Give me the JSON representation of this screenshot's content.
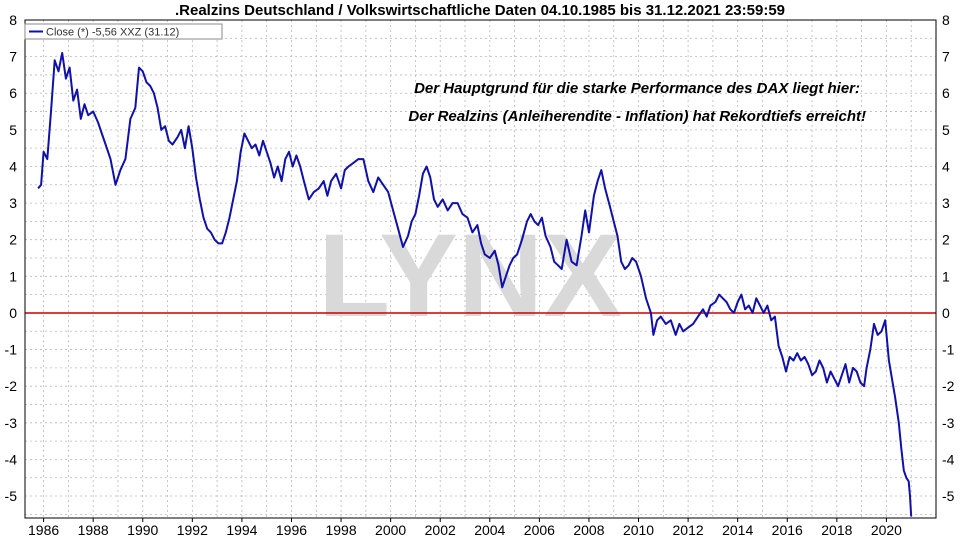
{
  "chart_data": {
    "type": "line",
    "title": ".Realzins Deutschland / Volkswirtschaftliche Daten 04.10.1985 bis 31.12.2021 23:59:59",
    "legend": {
      "entry": "Close (*) -5,56 XXZ (31.12)",
      "placement": "top-left"
    },
    "annotations": [
      "Der Hauptgrund für die starke Performance des DAX liegt hier:",
      "Der Realzins (Anleiherendite - Inflation) hat Rekordtiefs erreicht!"
    ],
    "watermark": "LYNX",
    "x_range": [
      1985.25,
      2022.0
    ],
    "ylim": [
      -5.6,
      8.0
    ],
    "x_ticks": [
      {
        "value": 1986,
        "label": "1986"
      },
      {
        "value": 1988,
        "label": "1988"
      },
      {
        "value": 1990,
        "label": "1990"
      },
      {
        "value": 1992,
        "label": "1992"
      },
      {
        "value": 1994,
        "label": "1994"
      },
      {
        "value": 1996,
        "label": "1996"
      },
      {
        "value": 1998,
        "label": "1998"
      },
      {
        "value": 2000,
        "label": "2000"
      },
      {
        "value": 2002,
        "label": "2002"
      },
      {
        "value": 2004,
        "label": "2004"
      },
      {
        "value": 2006,
        "label": "2006"
      },
      {
        "value": 2008,
        "label": "2008"
      },
      {
        "value": 2010,
        "label": "2010"
      },
      {
        "value": 2012,
        "label": "2012"
      },
      {
        "value": 2014,
        "label": "2014"
      },
      {
        "value": 2016,
        "label": "2016"
      },
      {
        "value": 2018,
        "label": "2018"
      },
      {
        "value": 2020,
        "label": "2020"
      }
    ],
    "y_ticks": [
      {
        "value": 8,
        "label": "8"
      },
      {
        "value": 7,
        "label": "7"
      },
      {
        "value": 6,
        "label": "6"
      },
      {
        "value": 5,
        "label": "5"
      },
      {
        "value": 4,
        "label": "4"
      },
      {
        "value": 3,
        "label": "3"
      },
      {
        "value": 2,
        "label": "2"
      },
      {
        "value": 1,
        "label": "1"
      },
      {
        "value": 0,
        "label": "0"
      },
      {
        "value": -1,
        "label": "-1"
      },
      {
        "value": -2,
        "label": "-2"
      },
      {
        "value": -3,
        "label": "-3"
      },
      {
        "value": -4,
        "label": "-4"
      },
      {
        "value": -5,
        "label": "-5"
      }
    ],
    "grid": true,
    "reference_line": {
      "y": 0,
      "color": "#cc0000"
    },
    "series": [
      {
        "color": "#1010aa",
        "points": [
          [
            1985.78,
            3.4
          ],
          [
            1985.9,
            3.5
          ],
          [
            1986.0,
            4.4
          ],
          [
            1986.15,
            4.2
          ],
          [
            1986.3,
            5.5
          ],
          [
            1986.45,
            6.9
          ],
          [
            1986.6,
            6.6
          ],
          [
            1986.75,
            7.1
          ],
          [
            1986.9,
            6.4
          ],
          [
            1987.05,
            6.7
          ],
          [
            1987.2,
            5.8
          ],
          [
            1987.35,
            6.1
          ],
          [
            1987.5,
            5.3
          ],
          [
            1987.65,
            5.7
          ],
          [
            1987.8,
            5.4
          ],
          [
            1988.0,
            5.5
          ],
          [
            1988.2,
            5.2
          ],
          [
            1988.35,
            4.9
          ],
          [
            1988.5,
            4.6
          ],
          [
            1988.7,
            4.2
          ],
          [
            1988.9,
            3.5
          ],
          [
            1989.1,
            3.9
          ],
          [
            1989.3,
            4.2
          ],
          [
            1989.5,
            5.3
          ],
          [
            1989.7,
            5.6
          ],
          [
            1989.85,
            6.7
          ],
          [
            1990.0,
            6.6
          ],
          [
            1990.15,
            6.3
          ],
          [
            1990.3,
            6.2
          ],
          [
            1990.45,
            6.0
          ],
          [
            1990.6,
            5.6
          ],
          [
            1990.75,
            5.0
          ],
          [
            1990.9,
            5.1
          ],
          [
            1991.05,
            4.7
          ],
          [
            1991.2,
            4.6
          ],
          [
            1991.4,
            4.8
          ],
          [
            1991.55,
            5.0
          ],
          [
            1991.7,
            4.5
          ],
          [
            1991.85,
            5.1
          ],
          [
            1992.0,
            4.5
          ],
          [
            1992.15,
            3.7
          ],
          [
            1992.3,
            3.1
          ],
          [
            1992.45,
            2.6
          ],
          [
            1992.6,
            2.3
          ],
          [
            1992.75,
            2.2
          ],
          [
            1992.9,
            2.0
          ],
          [
            1993.05,
            1.9
          ],
          [
            1993.2,
            1.9
          ],
          [
            1993.35,
            2.2
          ],
          [
            1993.5,
            2.6
          ],
          [
            1993.65,
            3.1
          ],
          [
            1993.8,
            3.6
          ],
          [
            1993.95,
            4.4
          ],
          [
            1994.1,
            4.9
          ],
          [
            1994.25,
            4.7
          ],
          [
            1994.4,
            4.5
          ],
          [
            1994.55,
            4.6
          ],
          [
            1994.7,
            4.3
          ],
          [
            1994.85,
            4.7
          ],
          [
            1995.0,
            4.4
          ],
          [
            1995.15,
            4.1
          ],
          [
            1995.3,
            3.7
          ],
          [
            1995.45,
            4.0
          ],
          [
            1995.6,
            3.6
          ],
          [
            1995.75,
            4.2
          ],
          [
            1995.9,
            4.4
          ],
          [
            1996.05,
            4.0
          ],
          [
            1996.2,
            4.3
          ],
          [
            1996.35,
            4.0
          ],
          [
            1996.5,
            3.6
          ],
          [
            1996.7,
            3.1
          ],
          [
            1996.9,
            3.3
          ],
          [
            1997.1,
            3.4
          ],
          [
            1997.3,
            3.6
          ],
          [
            1997.45,
            3.2
          ],
          [
            1997.6,
            3.6
          ],
          [
            1997.8,
            3.8
          ],
          [
            1998.0,
            3.4
          ],
          [
            1998.15,
            3.9
          ],
          [
            1998.3,
            4.0
          ],
          [
            1998.5,
            4.1
          ],
          [
            1998.7,
            4.2
          ],
          [
            1998.9,
            4.2
          ],
          [
            1999.1,
            3.6
          ],
          [
            1999.3,
            3.3
          ],
          [
            1999.5,
            3.7
          ],
          [
            1999.7,
            3.5
          ],
          [
            1999.9,
            3.3
          ],
          [
            2000.1,
            2.8
          ],
          [
            2000.3,
            2.3
          ],
          [
            2000.5,
            1.8
          ],
          [
            2000.7,
            2.1
          ],
          [
            2000.85,
            2.5
          ],
          [
            2001.0,
            2.7
          ],
          [
            2001.15,
            3.2
          ],
          [
            2001.3,
            3.8
          ],
          [
            2001.45,
            4.0
          ],
          [
            2001.6,
            3.7
          ],
          [
            2001.75,
            3.1
          ],
          [
            2001.9,
            2.9
          ],
          [
            2002.1,
            3.1
          ],
          [
            2002.3,
            2.8
          ],
          [
            2002.5,
            3.0
          ],
          [
            2002.7,
            3.0
          ],
          [
            2002.9,
            2.7
          ],
          [
            2003.1,
            2.6
          ],
          [
            2003.3,
            2.2
          ],
          [
            2003.5,
            2.4
          ],
          [
            2003.65,
            1.9
          ],
          [
            2003.8,
            1.6
          ],
          [
            2004.0,
            1.5
          ],
          [
            2004.2,
            1.7
          ],
          [
            2004.35,
            1.3
          ],
          [
            2004.5,
            0.7
          ],
          [
            2004.65,
            1.0
          ],
          [
            2004.8,
            1.3
          ],
          [
            2004.95,
            1.5
          ],
          [
            2005.1,
            1.6
          ],
          [
            2005.3,
            2.0
          ],
          [
            2005.5,
            2.5
          ],
          [
            2005.65,
            2.7
          ],
          [
            2005.8,
            2.5
          ],
          [
            2005.95,
            2.4
          ],
          [
            2006.1,
            2.6
          ],
          [
            2006.25,
            2.1
          ],
          [
            2006.45,
            1.8
          ],
          [
            2006.6,
            1.4
          ],
          [
            2006.75,
            1.3
          ],
          [
            2006.9,
            1.2
          ],
          [
            2007.1,
            2.0
          ],
          [
            2007.3,
            1.4
          ],
          [
            2007.5,
            1.3
          ],
          [
            2007.7,
            2.1
          ],
          [
            2007.85,
            2.8
          ],
          [
            2008.0,
            2.2
          ],
          [
            2008.2,
            3.2
          ],
          [
            2008.35,
            3.6
          ],
          [
            2008.5,
            3.9
          ],
          [
            2008.65,
            3.4
          ],
          [
            2008.85,
            2.9
          ],
          [
            2009.0,
            2.5
          ],
          [
            2009.15,
            2.1
          ],
          [
            2009.3,
            1.4
          ],
          [
            2009.45,
            1.2
          ],
          [
            2009.6,
            1.3
          ],
          [
            2009.75,
            1.5
          ],
          [
            2009.9,
            1.4
          ],
          [
            2010.1,
            1.0
          ],
          [
            2010.3,
            0.4
          ],
          [
            2010.5,
            0.0
          ],
          [
            2010.6,
            -0.6
          ],
          [
            2010.75,
            -0.2
          ],
          [
            2010.9,
            -0.1
          ],
          [
            2011.1,
            -0.3
          ],
          [
            2011.3,
            -0.2
          ],
          [
            2011.5,
            -0.6
          ],
          [
            2011.65,
            -0.3
          ],
          [
            2011.8,
            -0.5
          ],
          [
            2012.0,
            -0.4
          ],
          [
            2012.2,
            -0.3
          ],
          [
            2012.4,
            -0.1
          ],
          [
            2012.6,
            0.1
          ],
          [
            2012.75,
            -0.1
          ],
          [
            2012.9,
            0.2
          ],
          [
            2013.1,
            0.3
          ],
          [
            2013.25,
            0.5
          ],
          [
            2013.4,
            0.4
          ],
          [
            2013.55,
            0.3
          ],
          [
            2013.7,
            0.1
          ],
          [
            2013.85,
            0.0
          ],
          [
            2014.0,
            0.3
          ],
          [
            2014.15,
            0.5
          ],
          [
            2014.3,
            0.1
          ],
          [
            2014.45,
            0.2
          ],
          [
            2014.6,
            0.0
          ],
          [
            2014.75,
            0.4
          ],
          [
            2014.9,
            0.2
          ],
          [
            2015.05,
            0.0
          ],
          [
            2015.2,
            0.2
          ],
          [
            2015.35,
            -0.2
          ],
          [
            2015.5,
            -0.1
          ],
          [
            2015.65,
            -0.9
          ],
          [
            2015.8,
            -1.2
          ],
          [
            2015.95,
            -1.6
          ],
          [
            2016.1,
            -1.2
          ],
          [
            2016.25,
            -1.3
          ],
          [
            2016.4,
            -1.1
          ],
          [
            2016.55,
            -1.3
          ],
          [
            2016.7,
            -1.2
          ],
          [
            2016.85,
            -1.4
          ],
          [
            2017.0,
            -1.7
          ],
          [
            2017.15,
            -1.6
          ],
          [
            2017.3,
            -1.3
          ],
          [
            2017.45,
            -1.5
          ],
          [
            2017.6,
            -1.9
          ],
          [
            2017.75,
            -1.6
          ],
          [
            2017.9,
            -1.8
          ],
          [
            2018.05,
            -2.0
          ],
          [
            2018.2,
            -1.7
          ],
          [
            2018.35,
            -1.4
          ],
          [
            2018.5,
            -1.9
          ],
          [
            2018.65,
            -1.5
          ],
          [
            2018.8,
            -1.6
          ],
          [
            2018.95,
            -1.9
          ],
          [
            2019.1,
            -2.0
          ],
          [
            2019.2,
            -1.5
          ],
          [
            2019.35,
            -1.0
          ],
          [
            2019.5,
            -0.3
          ],
          [
            2019.65,
            -0.6
          ],
          [
            2019.8,
            -0.5
          ],
          [
            2019.95,
            -0.2
          ],
          [
            2020.1,
            -1.3
          ],
          [
            2020.25,
            -1.9
          ],
          [
            2020.35,
            -2.3
          ],
          [
            2020.5,
            -3.0
          ],
          [
            2020.6,
            -3.7
          ],
          [
            2020.7,
            -4.3
          ],
          [
            2020.8,
            -4.5
          ],
          [
            2020.9,
            -4.6
          ],
          [
            2020.95,
            -5.0
          ],
          [
            2021.0,
            -5.56
          ]
        ]
      }
    ]
  }
}
